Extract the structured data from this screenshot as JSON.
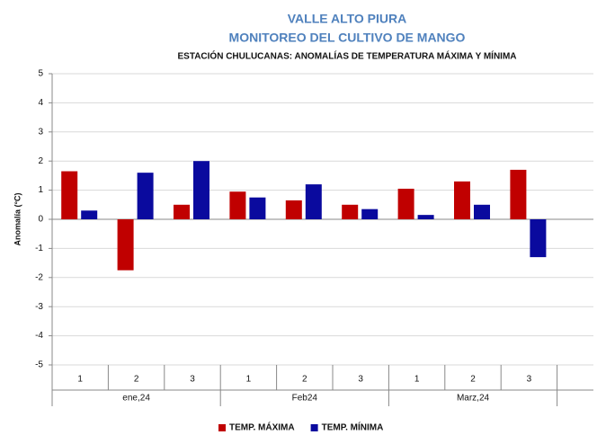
{
  "chart_data": {
    "type": "bar",
    "title": "VALLE ALTO PIURA",
    "title2": "MONITOREO  DEL CULTIVO DE MANGO",
    "subtitle": "ESTACIÓN CHULUCANAS: ANOMALÍAS DE TEMPERATURA  MÁXIMA Y MÍNIMA",
    "ylabel": "Anomalía (°C)",
    "categories": [
      "1",
      "2",
      "3",
      "1",
      "2",
      "3",
      "1",
      "2",
      "3"
    ],
    "category_groups": [
      "ene,24",
      "Feb24",
      "Marz,24"
    ],
    "series": [
      {
        "name": "TEMP. MÁXIMA",
        "color": "#c00000",
        "values": [
          1.65,
          -1.75,
          0.5,
          0.95,
          0.65,
          0.5,
          1.05,
          1.3,
          1.7
        ]
      },
      {
        "name": "TEMP. MÍNIMA",
        "color": "#0a0a9e",
        "values": [
          0.3,
          1.6,
          2.0,
          0.75,
          1.2,
          0.35,
          0.15,
          0.5,
          -1.3
        ]
      }
    ],
    "ylim": [
      -5,
      5
    ],
    "yticks": [
      -5,
      -4,
      -3,
      -2,
      -1,
      0,
      1,
      2,
      3,
      4,
      5
    ],
    "grid": true,
    "legend": "bottom"
  }
}
